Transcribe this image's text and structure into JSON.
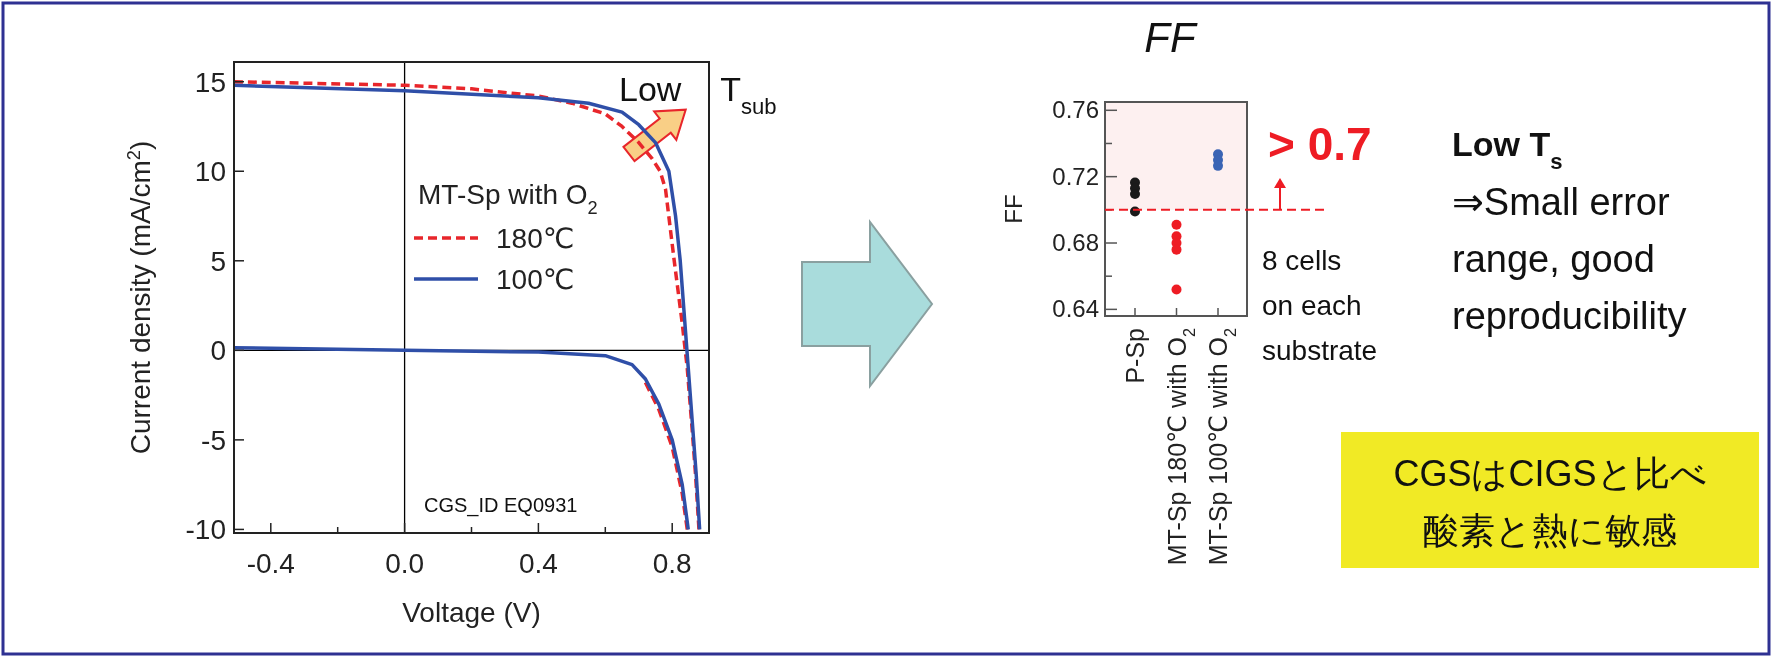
{
  "chart_data": [
    {
      "type": "line",
      "xlabel": "Voltage (V)",
      "ylabel": "Current density (mA/cm$^{2}$)",
      "legend_title": "MT-Sp with O$_{2}$",
      "legend": "center",
      "xlim": [
        -0.51,
        0.91
      ],
      "ylim": [
        -10.2,
        16.1
      ],
      "xticks": [
        {
          "value": -0.4,
          "label": "-0.4"
        },
        {
          "value": -0.2,
          "label": null
        },
        {
          "value": 0,
          "label": "0.0"
        },
        {
          "value": 0.2,
          "label": null
        },
        {
          "value": 0.4,
          "label": "0.4"
        },
        {
          "value": 0.6,
          "label": null
        },
        {
          "value": 0.8,
          "label": "0.8"
        }
      ],
      "yticks": [
        -10,
        -5,
        0,
        5,
        10,
        15
      ],
      "ref_lines": [
        {
          "axis": "x",
          "value": 0,
          "color": "#000000"
        },
        {
          "axis": "y",
          "value": 0,
          "color": "#000000"
        }
      ],
      "annotations": [
        "CGS_ID EQ0931",
        "Low T$_{sub}$"
      ],
      "series": [
        {
          "name": "180℃",
          "color": "#e8262b",
          "line_style": "dashed",
          "x": [
            -0.51,
            0,
            0.2,
            0.4,
            0.5,
            0.6,
            0.65,
            0.7,
            0.74,
            0.764,
            0.78,
            0.806,
            0.83,
            0.845,
            0.86,
            0.87,
            0.88
          ],
          "values": [
            15.0,
            14.8,
            14.6,
            14.2,
            13.8,
            13.2,
            12.5,
            11.6,
            10.7,
            10.0,
            9.0,
            5.0,
            1.5,
            -1.0,
            -4.5,
            -7.0,
            -10.0
          ]
        },
        {
          "name": "100℃",
          "color": "#2f4fa8",
          "line_style": "solid",
          "x": [
            -0.51,
            0,
            0.4,
            0.55,
            0.65,
            0.7,
            0.75,
            0.79,
            0.81,
            0.824,
            0.84,
            0.848,
            0.86,
            0.872,
            0.882
          ],
          "values": [
            14.8,
            14.5,
            14.1,
            13.8,
            13.3,
            12.6,
            11.6,
            10.0,
            7.5,
            5.0,
            1.0,
            -1.0,
            -4.0,
            -7.0,
            -10.0
          ]
        },
        {
          "color": "#e8262b",
          "line_style": "dashed",
          "x": [
            0.72,
            0.76,
            0.8,
            0.83,
            0.845
          ],
          "values": [
            -1.8,
            -3.3,
            -5.4,
            -8.0,
            -10.0
          ]
        },
        {
          "color": "#2f4fa8",
          "line_style": "solid",
          "x": [
            -0.51,
            0,
            0.4,
            0.6,
            0.68,
            0.72,
            0.76,
            0.8,
            0.83,
            0.848
          ],
          "values": [
            0.15,
            0,
            -0.1,
            -0.3,
            -0.8,
            -1.6,
            -3.0,
            -5.0,
            -7.5,
            -10.0
          ]
        }
      ]
    },
    {
      "type": "scatter",
      "title": "FF",
      "ylabel": "FF",
      "marker": "circle",
      "categories": [
        "P-Sp",
        "MT-Sp 180℃ with O$_{2}$",
        "MT-Sp 100℃ with O$_{2}$"
      ],
      "ylim": [
        0.636,
        0.765
      ],
      "yticks": [
        {
          "value": 0.64,
          "label": "0.64"
        },
        {
          "value": 0.66,
          "label": null
        },
        {
          "value": 0.68,
          "label": "0.68"
        },
        {
          "value": 0.7,
          "label": null
        },
        {
          "value": 0.72,
          "label": "0.72"
        },
        {
          "value": 0.74,
          "label": null
        },
        {
          "value": 0.76,
          "label": "0.76"
        }
      ],
      "bands": [
        {
          "axis": "y",
          "from": 0.7,
          "to": 0.765,
          "color": "#fdf0f0"
        }
      ],
      "ref_lines": [
        {
          "axis": "y",
          "value": 0.7,
          "label": "> 0.7",
          "color": "#ee1c24",
          "line_style": "dashed"
        }
      ],
      "annotations": [
        "8 cells\non each\nsubstrate"
      ],
      "series": [
        {
          "color": "#1a1a1a",
          "x": [
            "P-Sp",
            "P-Sp",
            "P-Sp",
            "P-Sp"
          ],
          "values": [
            0.7165,
            0.713,
            0.7095,
            0.699
          ]
        },
        {
          "color": "#ee1c24",
          "x": [
            "MT-Sp 180℃ with O$_{2}$",
            "MT-Sp 180℃ with O$_{2}$",
            "MT-Sp 180℃ with O$_{2}$",
            "MT-Sp 180℃ with O$_{2}$",
            "MT-Sp 180℃ with O$_{2}$"
          ],
          "values": [
            0.691,
            0.684,
            0.68,
            0.676,
            0.652
          ]
        },
        {
          "color": "#3a64b4",
          "x": [
            "MT-Sp 100℃ with O$_{2}$",
            "MT-Sp 100℃ with O$_{2}$",
            "MT-Sp 100℃ with O$_{2}$"
          ],
          "values": [
            0.7335,
            0.73,
            0.7265
          ]
        }
      ]
    },
    {
      "type": "other",
      "annotations": [
        "Low T$_{s}$",
        "⇒Small error\nrange, good\nreproducibility",
        "CGSはCIGSと比べ",
        "酸素と熱に敏感"
      ]
    }
  ]
}
